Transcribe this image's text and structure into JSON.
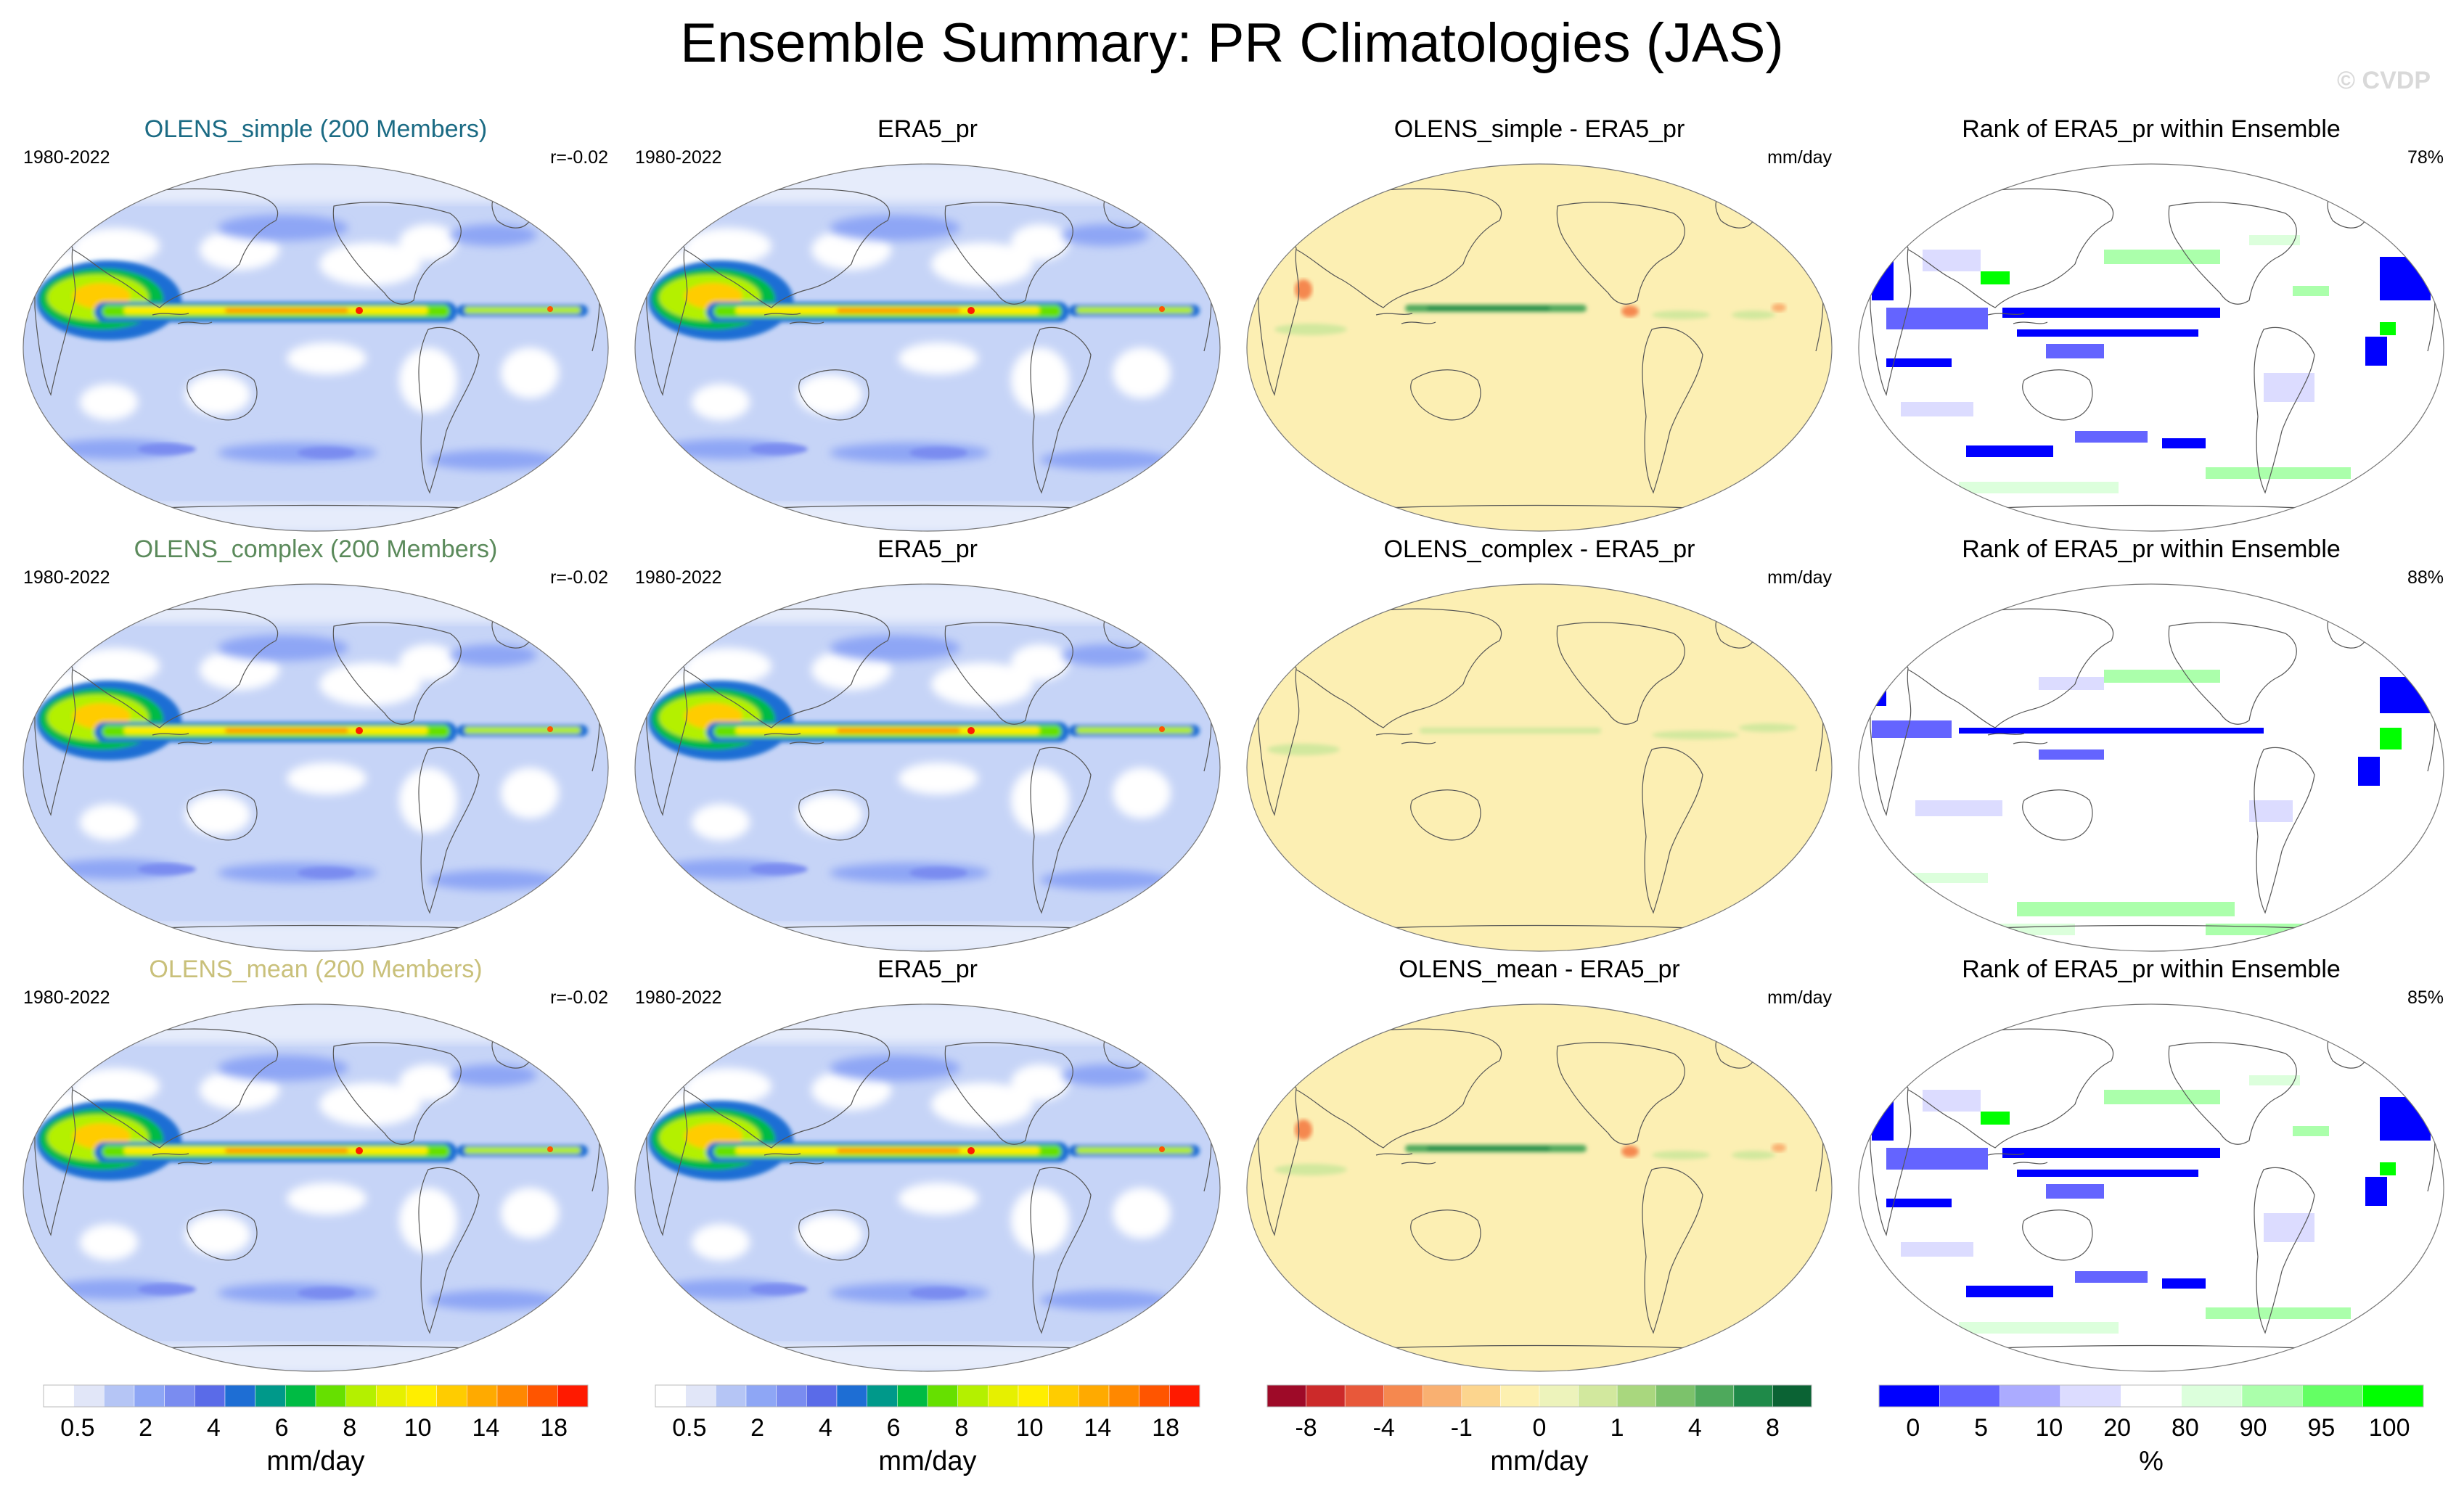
{
  "title": "Ensemble Summary: PR Climatologies (JAS)",
  "watermark": "© CVDP",
  "rows": [
    {
      "model": {
        "title": "OLENS_simple (200 Members)",
        "title_color": "#1b6b84",
        "period": "1980-2022",
        "corr": "r=-0.02"
      },
      "obs": {
        "title": "ERA5_pr",
        "period": "1980-2022"
      },
      "diff": {
        "title": "OLENS_simple - ERA5_pr",
        "units": "mm/day"
      },
      "rank": {
        "title": "Rank of ERA5_pr within Ensemble",
        "pct": "78%"
      }
    },
    {
      "model": {
        "title": "OLENS_complex (200 Members)",
        "title_color": "#5b8a5b",
        "period": "1980-2022",
        "corr": "r=-0.02"
      },
      "obs": {
        "title": "ERA5_pr",
        "period": "1980-2022"
      },
      "diff": {
        "title": "OLENS_complex - ERA5_pr",
        "units": "mm/day"
      },
      "rank": {
        "title": "Rank of ERA5_pr within Ensemble",
        "pct": "88%"
      }
    },
    {
      "model": {
        "title": "OLENS_mean (200 Members)",
        "title_color": "#c9c07a",
        "period": "1980-2022",
        "corr": "r=-0.02"
      },
      "obs": {
        "title": "ERA5_pr",
        "period": "1980-2022"
      },
      "diff": {
        "title": "OLENS_mean - ERA5_pr",
        "units": "mm/day"
      },
      "rank": {
        "title": "Rank of ERA5_pr within Ensemble",
        "pct": "85%"
      }
    }
  ],
  "colorbars": {
    "precip": {
      "units": "mm/day",
      "colors": [
        "#ffffff",
        "#e1e6f8",
        "#b5c5f5",
        "#8ea6f5",
        "#7a8cf0",
        "#5a6be8",
        "#1e6ed4",
        "#00998a",
        "#00bb44",
        "#66e000",
        "#b4f000",
        "#e6f000",
        "#ffee00",
        "#ffcc00",
        "#ffaa00",
        "#ff8800",
        "#ff5500",
        "#ff1a00"
      ],
      "tick_labels": [
        "0.5",
        "2",
        "4",
        "6",
        "8",
        "10",
        "14",
        "18"
      ]
    },
    "diff": {
      "units": "mm/day",
      "colors": [
        "#9e0a28",
        "#cc2a2a",
        "#e8583a",
        "#f5884f",
        "#f9b071",
        "#fcd58e",
        "#fdf0b0",
        "#edf3bb",
        "#d2e89e",
        "#a9d77e",
        "#7cc26b",
        "#4ea95c",
        "#1f8a49",
        "#0b6334"
      ],
      "tick_labels": [
        "-8",
        "-4",
        "-1",
        "0",
        "1",
        "4",
        "8"
      ]
    },
    "rank": {
      "units": "%",
      "colors": [
        "#0000ff",
        "#6464ff",
        "#ababff",
        "#dcdcff",
        "#ffffff",
        "#dcffdc",
        "#abffab",
        "#64ff64",
        "#00ff00"
      ],
      "tick_labels": [
        "0",
        "5",
        "10",
        "20",
        "80",
        "90",
        "95",
        "100"
      ]
    }
  }
}
